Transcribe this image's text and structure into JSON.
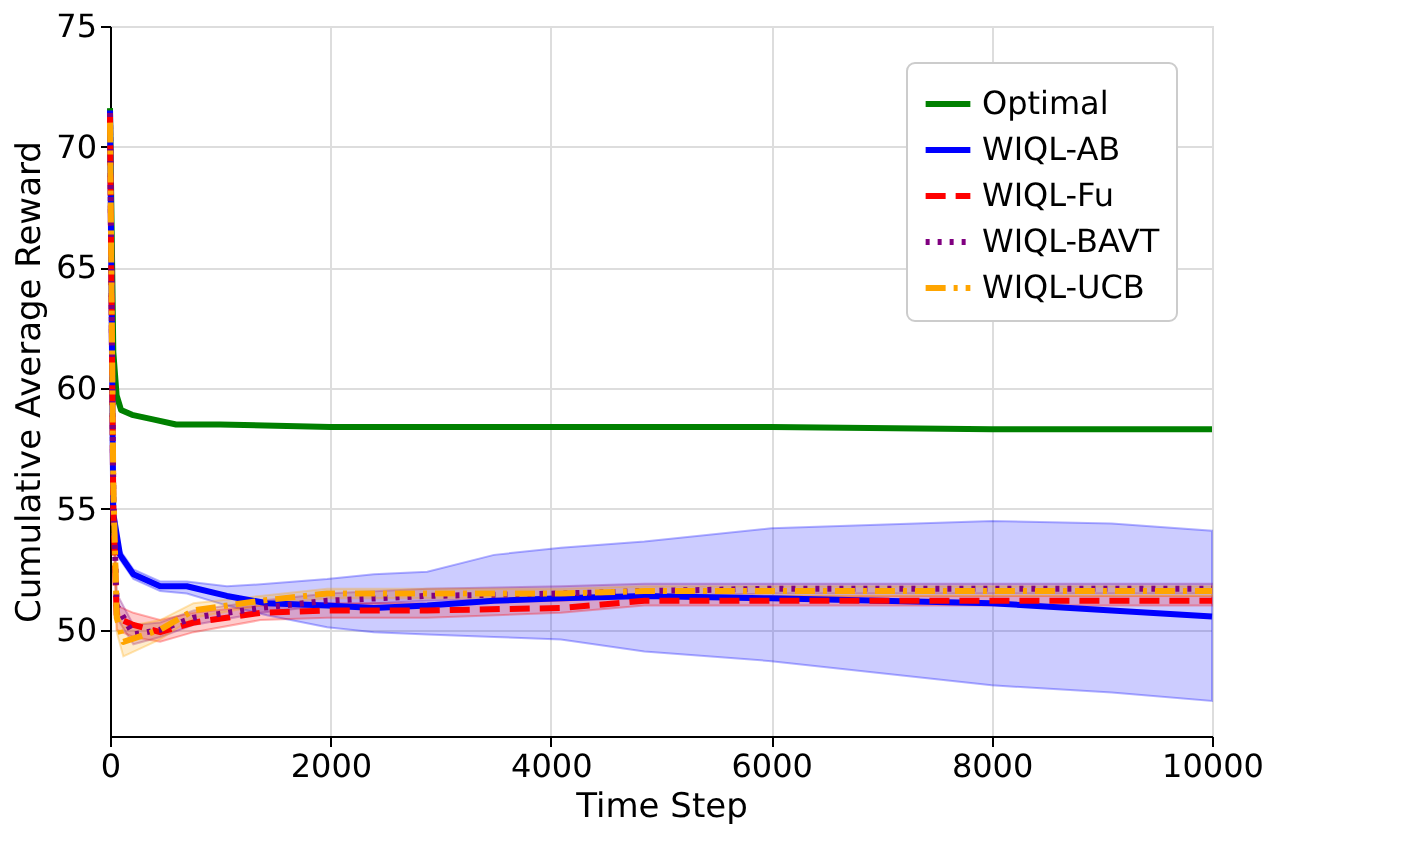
{
  "chart_data": {
    "type": "line",
    "xlabel": "Time Step",
    "ylabel": "Cumulative Average Reward",
    "xlim": [
      0,
      10000
    ],
    "xticks": [
      0,
      2000,
      4000,
      6000,
      8000,
      10000
    ],
    "ylim": [
      45.6,
      75
    ],
    "yticks": [
      50,
      55,
      60,
      65,
      70,
      75
    ],
    "grid": true,
    "legend": "top right",
    "marker": "none",
    "series": [
      {
        "name": "Optimal",
        "color": "#008000",
        "line_style": "solid",
        "x": [
          0,
          30,
          60,
          100,
          200,
          400,
          600,
          1000,
          2000,
          4000,
          6000,
          8000,
          10000
        ],
        "values": [
          71.6,
          61.5,
          59.7,
          59.1,
          58.9,
          58.7,
          58.5,
          58.5,
          58.4,
          58.4,
          58.4,
          58.3,
          58.3
        ]
      },
      {
        "name": "WIQL-AB",
        "color": "#0000ff",
        "line_style": "solid",
        "x": [
          0,
          30,
          91,
          212,
          455,
          697,
          1061,
          1424,
          1970,
          2394,
          2879,
          3485,
          4091,
          4849,
          6000,
          8000,
          9090,
          10000
        ],
        "values": [
          71.5,
          54.8,
          53.1,
          52.3,
          51.8,
          51.8,
          51.4,
          51.1,
          51.0,
          50.9,
          51.0,
          51.2,
          51.3,
          51.4,
          51.3,
          51.1,
          50.8,
          50.55
        ],
        "lower": [
          71.5,
          54.6,
          52.9,
          52.1,
          51.6,
          51.5,
          51.0,
          50.6,
          50.1,
          49.9,
          49.8,
          49.7,
          49.6,
          49.1,
          48.7,
          47.7,
          47.4,
          47.05
        ],
        "upper": [
          71.5,
          55.0,
          53.3,
          52.5,
          52.0,
          52.0,
          51.8,
          51.9,
          52.1,
          52.3,
          52.4,
          53.1,
          53.4,
          53.65,
          54.2,
          54.5,
          54.4,
          54.1
        ]
      },
      {
        "name": "WIQL-Fu",
        "color": "#ff0000",
        "line_style": "dashed",
        "x": [
          0,
          30,
          61,
          212,
          455,
          758,
          1364,
          1970,
          2879,
          4091,
          4849,
          6000,
          8000,
          10000
        ],
        "values": [
          71.3,
          55.0,
          50.5,
          50.2,
          49.9,
          50.3,
          50.7,
          50.8,
          50.8,
          50.9,
          51.2,
          51.2,
          51.2,
          51.2
        ],
        "lower": [
          71.3,
          54.5,
          50.0,
          49.7,
          49.5,
          49.9,
          50.4,
          50.5,
          50.5,
          50.7,
          51.0,
          51.0,
          51.0,
          51.0
        ],
        "upper": [
          71.3,
          55.5,
          51.0,
          50.7,
          50.4,
          50.7,
          51.0,
          51.1,
          51.1,
          51.2,
          51.4,
          51.4,
          51.4,
          51.4
        ]
      },
      {
        "name": "WIQL-BAVT",
        "color": "#800080",
        "line_style": "dotted",
        "x": [
          0,
          30,
          61,
          212,
          455,
          758,
          1364,
          1970,
          2879,
          4091,
          4849,
          6000,
          8000,
          10000
        ],
        "values": [
          71.4,
          55.5,
          51.0,
          49.8,
          50.0,
          50.5,
          50.9,
          51.2,
          51.4,
          51.5,
          51.6,
          51.7,
          51.7,
          51.7
        ],
        "lower": [
          71.4,
          55.0,
          50.5,
          49.4,
          49.7,
          50.2,
          50.7,
          51.0,
          51.2,
          51.3,
          51.4,
          51.5,
          51.5,
          51.5
        ],
        "upper": [
          71.4,
          56.0,
          51.5,
          50.2,
          50.3,
          50.8,
          51.2,
          51.5,
          51.7,
          51.8,
          51.9,
          51.9,
          51.9,
          51.9
        ]
      },
      {
        "name": "WIQL-UCB",
        "color": "#ffa500",
        "line_style": "dashdot",
        "x": [
          0,
          30,
          61,
          121,
          455,
          758,
          1364,
          1970,
          2879,
          4091,
          4849,
          6000,
          8000,
          10000
        ],
        "values": [
          71.0,
          56.0,
          50.5,
          49.5,
          50.0,
          50.8,
          51.2,
          51.5,
          51.5,
          51.5,
          51.6,
          51.6,
          51.6,
          51.6
        ],
        "lower": [
          71.0,
          55.4,
          49.9,
          48.9,
          49.6,
          50.5,
          51.0,
          51.3,
          51.3,
          51.3,
          51.4,
          51.4,
          51.4,
          51.4
        ],
        "upper": [
          71.0,
          56.6,
          51.1,
          50.1,
          50.4,
          51.1,
          51.4,
          51.7,
          51.7,
          51.7,
          51.8,
          51.8,
          51.8,
          51.8
        ]
      }
    ]
  }
}
